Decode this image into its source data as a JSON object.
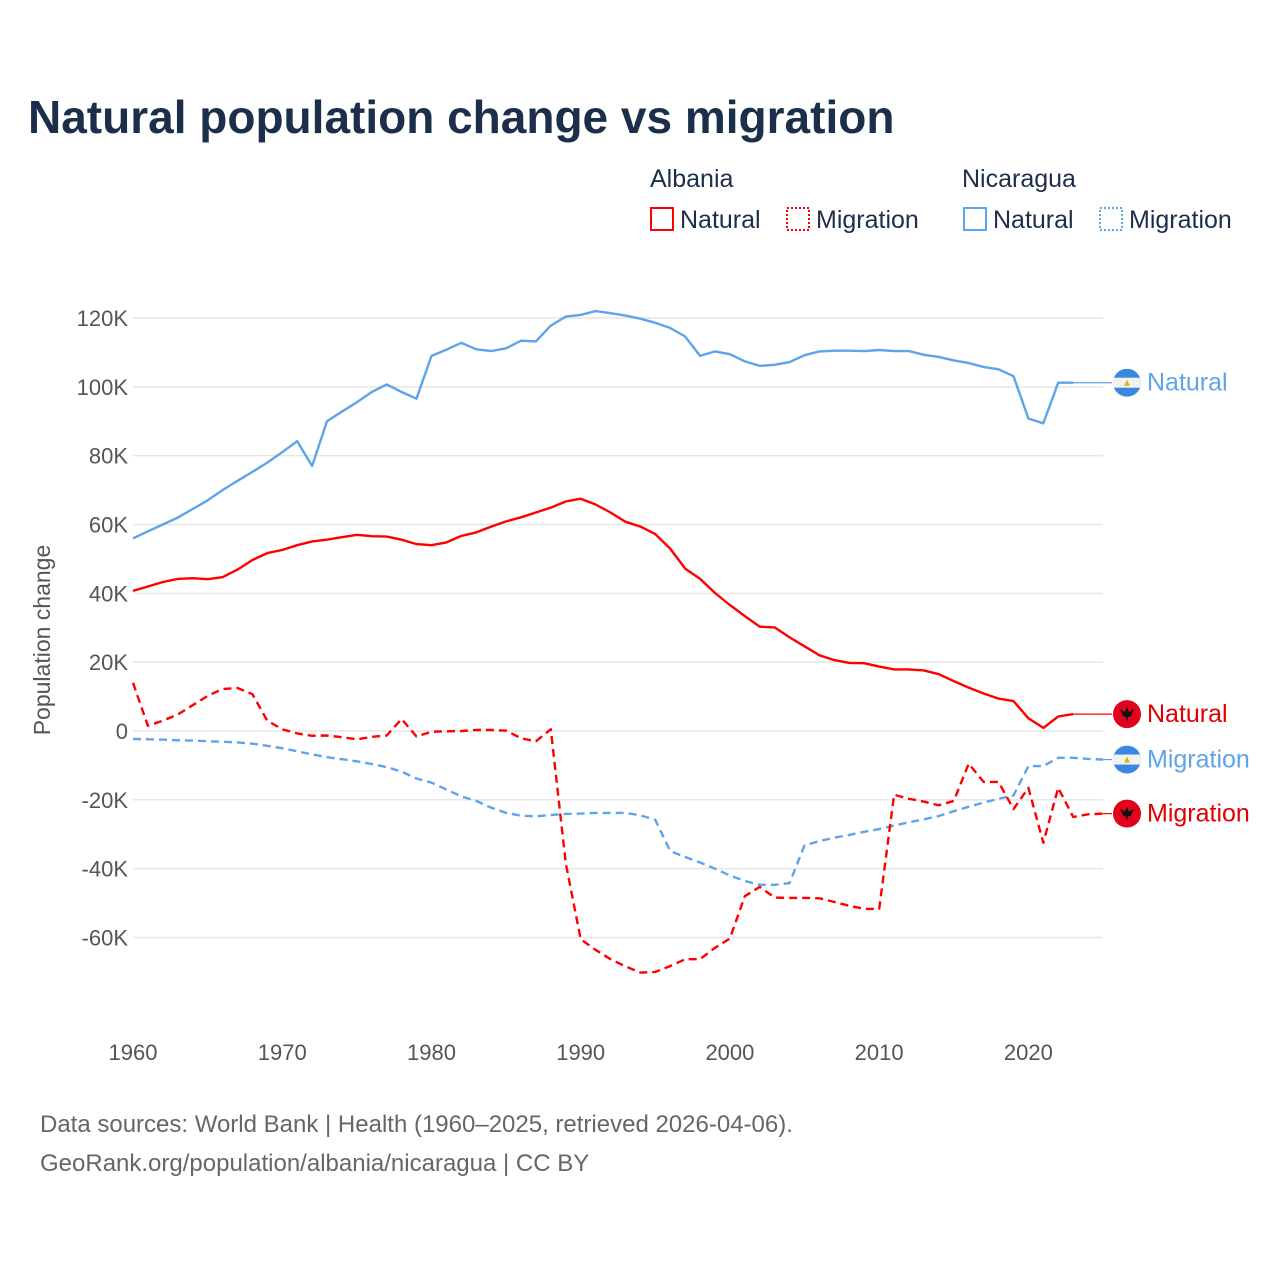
{
  "chart_data": {
    "type": "line",
    "title": "Natural population change vs migration",
    "xlabel": "",
    "ylabel": "Population change",
    "xlim": [
      1960,
      2025
    ],
    "ylim": [
      -80000,
      125000
    ],
    "x_ticks": [
      1960,
      1970,
      1980,
      1990,
      2000,
      2010,
      2020
    ],
    "x_tick_labels": [
      "1960",
      "1970",
      "1980",
      "1990",
      "2000",
      "2010",
      "2020"
    ],
    "y_ticks": [
      120000,
      100000,
      80000,
      60000,
      40000,
      20000,
      0,
      -20000,
      -40000,
      -60000
    ],
    "y_tick_labels": [
      "120K",
      "100K",
      "80K",
      "60K",
      "40K",
      "20K",
      "0",
      "-20K",
      "-40K",
      "-60K"
    ],
    "grid": true,
    "legend_placement": "top-right",
    "legend": {
      "groups": [
        {
          "country": "Albania",
          "items": [
            "Natural",
            "Migration"
          ]
        },
        {
          "country": "Nicaragua",
          "items": [
            "Natural",
            "Migration"
          ]
        }
      ]
    },
    "series": [
      {
        "name": "Nicaragua Natural",
        "country": "Nicaragua",
        "kind": "Natural",
        "end_label": "Natural",
        "color": "#5fa3ea",
        "dash": "solid",
        "flag": "nicaragua-flag",
        "start_year": 1960,
        "values": [
          56000,
          58000,
          60000,
          62000,
          64500,
          67000,
          70000,
          72700,
          75300,
          78000,
          81000,
          84200,
          77000,
          90000,
          92800,
          95500,
          98500,
          100700,
          98500,
          96600,
          109000,
          110800,
          112800,
          110900,
          110400,
          111200,
          113400,
          113200,
          117800,
          120400,
          120900,
          122000,
          121400,
          120700,
          119800,
          118600,
          117100,
          114600,
          109000,
          110300,
          109500,
          107400,
          106100,
          106400,
          107200,
          109200,
          110300,
          110500,
          110500,
          110400,
          110700,
          110400,
          110400,
          109300,
          108700,
          107700,
          106900,
          105800,
          105100,
          103100,
          90800,
          89400,
          101200,
          101200
        ]
      },
      {
        "name": "Albania Natural",
        "country": "Albania",
        "kind": "Natural",
        "end_label": "Natural",
        "color": "#ff0000",
        "dash": "solid",
        "flag": "albania-flag",
        "start_year": 1960,
        "values": [
          40700,
          42000,
          43300,
          44200,
          44400,
          44100,
          44700,
          46900,
          49700,
          51700,
          52600,
          54000,
          55100,
          55600,
          56300,
          57000,
          56600,
          56500,
          55600,
          54300,
          54000,
          54800,
          56700,
          57700,
          59400,
          60900,
          62100,
          63500,
          64900,
          66700,
          67500,
          65800,
          63500,
          60800,
          59400,
          57200,
          53000,
          47200,
          44200,
          40100,
          36600,
          33400,
          30300,
          30100,
          27200,
          24600,
          22000,
          20600,
          19800,
          19700,
          18700,
          17900,
          17900,
          17600,
          16500,
          14500,
          12600,
          10900,
          9400,
          8700,
          3700,
          900,
          4200,
          4900
        ]
      },
      {
        "name": "Nicaragua Migration",
        "country": "Nicaragua",
        "kind": "Migration",
        "end_label": "Migration",
        "color": "#5fa3ea",
        "dash": "dashed",
        "flag": "nicaragua-flag",
        "start_year": 1960,
        "values": [
          -2300,
          -2400,
          -2500,
          -2700,
          -2800,
          -3000,
          -3100,
          -3300,
          -3700,
          -4300,
          -5000,
          -5900,
          -6800,
          -7600,
          -8200,
          -8800,
          -9600,
          -10500,
          -11800,
          -13800,
          -15000,
          -17000,
          -19000,
          -20300,
          -22300,
          -23800,
          -24600,
          -24800,
          -24400,
          -24100,
          -24000,
          -23800,
          -23800,
          -23800,
          -24500,
          -25800,
          -34900,
          -36600,
          -38200,
          -40000,
          -42000,
          -43600,
          -44700,
          -44700,
          -44200,
          -33200,
          -32000,
          -31000,
          -30200,
          -29300,
          -28500,
          -27500,
          -26500,
          -25700,
          -24700,
          -23300,
          -22000,
          -20800,
          -19700,
          -18700,
          -10200,
          -10200,
          -7800,
          -7800,
          -8100,
          -8300
        ]
      },
      {
        "name": "Albania Migration",
        "country": "Albania",
        "kind": "Migration",
        "end_label": "Migration",
        "color": "#ff0000",
        "dash": "dashed",
        "flag": "albania-flag",
        "start_year": 1960,
        "values": [
          14000,
          1500,
          3000,
          4800,
          7500,
          10200,
          12200,
          12500,
          10700,
          3000,
          500,
          -700,
          -1400,
          -1300,
          -1800,
          -2400,
          -1700,
          -1300,
          3500,
          -1600,
          -200,
          -100,
          0,
          300,
          300,
          100,
          -2100,
          -3000,
          500,
          -38500,
          -60500,
          -63600,
          -66300,
          -68400,
          -70200,
          -70000,
          -68300,
          -66300,
          -66300,
          -63000,
          -60300,
          -48000,
          -45300,
          -48400,
          -48500,
          -48500,
          -48600,
          -49700,
          -50800,
          -51700,
          -51700,
          -18500,
          -19700,
          -20500,
          -21600,
          -20300,
          -9500,
          -14800,
          -14800,
          -22700,
          -16500,
          -32500,
          -16500,
          -25000,
          -24200,
          -24000
        ]
      }
    ]
  },
  "footer": {
    "line1": "Data sources: World Bank | Health (1960–2025, retrieved 2026-04-06).",
    "line2": "GeoRank.org/population/albania/nicaragua | CC BY"
  }
}
